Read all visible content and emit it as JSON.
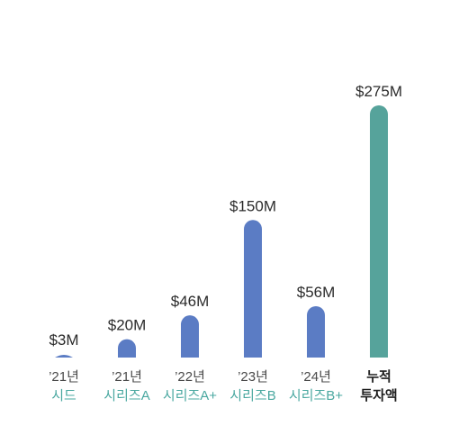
{
  "chart_data": {
    "type": "bar",
    "categories": [
      {
        "year": "’21년",
        "round": "시드"
      },
      {
        "year": "’21년",
        "round": "시리즈A"
      },
      {
        "year": "’22년",
        "round": "시리즈A+"
      },
      {
        "year": "’23년",
        "round": "시리즈B"
      },
      {
        "year": "’24년",
        "round": "시리즈B+"
      },
      {
        "year": "누적",
        "round": "투자액"
      }
    ],
    "values": [
      3,
      20,
      46,
      150,
      56,
      275
    ],
    "value_labels": [
      "$3M",
      "$20M",
      "$46M",
      "$150M",
      "$56M",
      "$275M"
    ],
    "total_index": 5,
    "ylim": [
      0,
      275
    ],
    "grid": false,
    "colors": {
      "bar": "#5b7cc4",
      "total_bar": "#56a39b",
      "round_text": "#4aa8a0",
      "year_text": "#4a4a4a",
      "total_text": "#1f1f1f"
    }
  }
}
